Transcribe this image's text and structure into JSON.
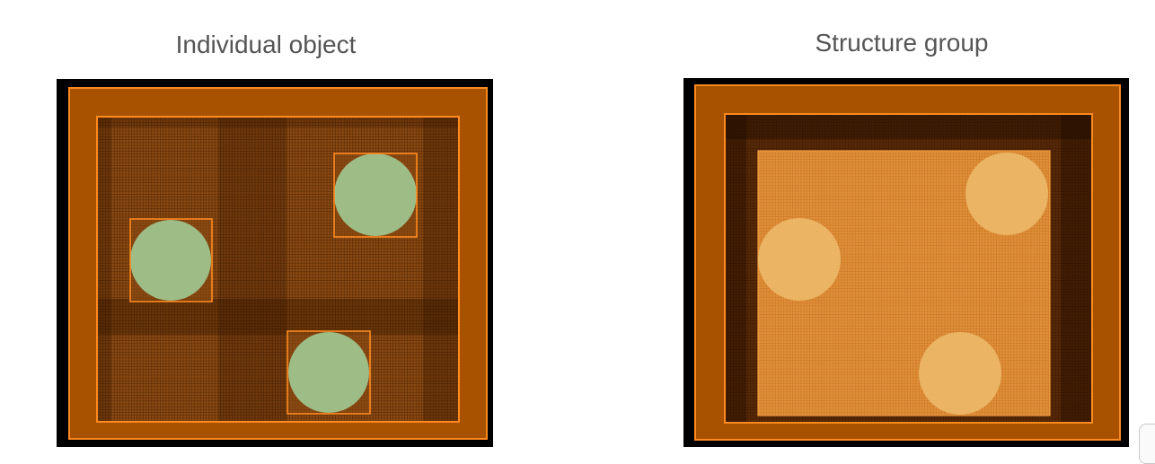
{
  "panels": [
    {
      "title": "Individual object",
      "mode": "individual",
      "colors": {
        "frame": "#000000",
        "domain": "#a85200",
        "outline": "#ff8a1f",
        "refined_region": "#8c4a12",
        "mesh_line": "#2a1200",
        "object_fill": "#9ebc86"
      },
      "objects": [
        "circle",
        "circle",
        "circle"
      ]
    },
    {
      "title": "Structure group",
      "mode": "group",
      "colors": {
        "frame": "#000000",
        "domain": "#a85200",
        "outline": "#ff8a1f",
        "refined_region": "#e0903a",
        "mesh_line": "#2a1200",
        "object_fill": "#ecb868"
      },
      "objects": [
        "circle",
        "circle",
        "circle"
      ]
    }
  ]
}
